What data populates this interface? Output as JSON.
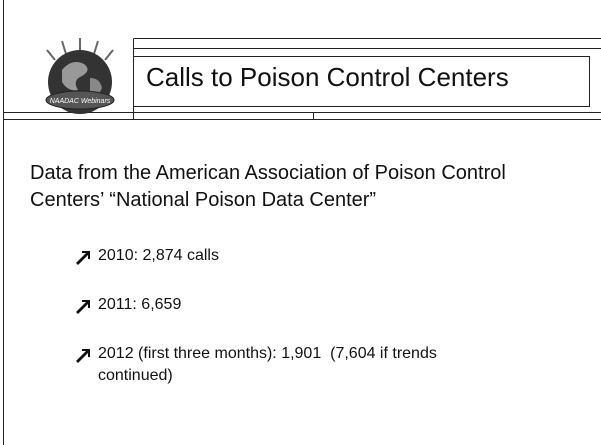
{
  "logo": {
    "label": "NAADAC Webinars"
  },
  "header": {
    "title": "Calls to Poison Control Centers"
  },
  "body": {
    "intro": "Data from the American Association of Poison Control Centers’ “National Poison Data Center”",
    "bullets": [
      "2010: 2,874 calls",
      "2011: 6,659",
      "2012 (first three months): 1,901  (7,604 if trends continued)"
    ]
  }
}
